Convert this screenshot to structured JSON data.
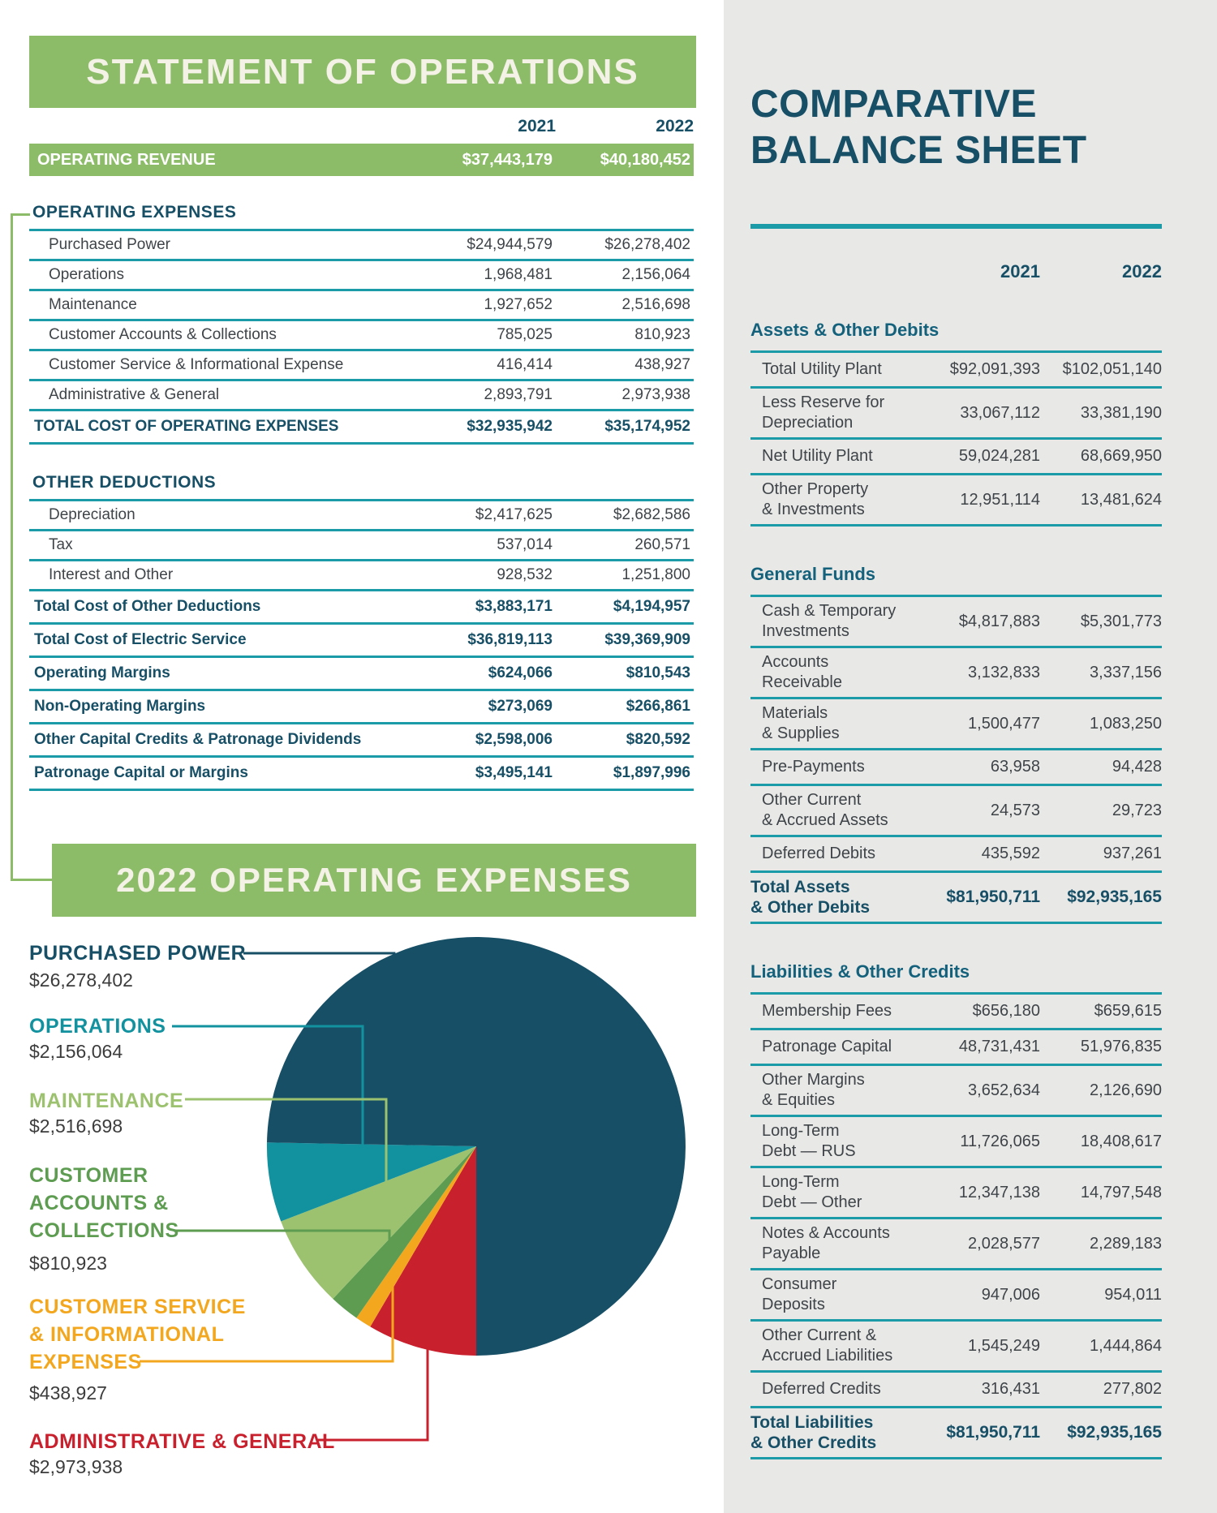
{
  "colors": {
    "banner_green": "#8CBC68",
    "navy": "#174F66",
    "teal": "#12919F",
    "rule_teal": "#1B9BA8",
    "light_green": "#9CC26F",
    "mid_green": "#5D9C51",
    "orange": "#F3A71F",
    "red": "#C9202E",
    "panel_gray": "#E8E8E7",
    "text_gray": "#3F4449",
    "banner_text": "#F4F1E6"
  },
  "statement": {
    "title": "STATEMENT OF OPERATIONS",
    "col_2021": "2021",
    "col_2022": "2022",
    "revenue": {
      "label": "OPERATING REVENUE",
      "y2021": "$37,443,179",
      "y2022": "$40,180,452"
    },
    "operating_expenses": {
      "heading": "OPERATING EXPENSES",
      "rows": [
        {
          "label": "Purchased Power",
          "y2021": "$24,944,579",
          "y2022": "$26,278,402"
        },
        {
          "label": "Operations",
          "y2021": "1,968,481",
          "y2022": "2,156,064"
        },
        {
          "label": "Maintenance",
          "y2021": "1,927,652",
          "y2022": "2,516,698"
        },
        {
          "label": "Customer Accounts & Collections",
          "y2021": "785,025",
          "y2022": "810,923"
        },
        {
          "label": "Customer Service & Informational Expense",
          "y2021": "416,414",
          "y2022": "438,927"
        },
        {
          "label": "Administrative & General",
          "y2021": "2,893,791",
          "y2022": "2,973,938"
        }
      ],
      "total": {
        "label": "TOTAL COST OF OPERATING EXPENSES",
        "y2021": "$32,935,942",
        "y2022": "$35,174,952"
      }
    },
    "other_deductions": {
      "heading": "OTHER DEDUCTIONS",
      "rows": [
        {
          "label": "Depreciation",
          "y2021": "$2,417,625",
          "y2022": "$2,682,586"
        },
        {
          "label": "Tax",
          "y2021": "537,014",
          "y2022": "260,571"
        },
        {
          "label": "Interest and Other",
          "y2021": "928,532",
          "y2022": "1,251,800"
        }
      ]
    },
    "summary_rows": [
      {
        "label": "Total Cost of Other Deductions",
        "y2021": "$3,883,171",
        "y2022": "$4,194,957"
      },
      {
        "label": "Total Cost of Electric Service",
        "y2021": "$36,819,113",
        "y2022": "$39,369,909"
      },
      {
        "label": "Operating Margins",
        "y2021": "$624,066",
        "y2022": "$810,543"
      },
      {
        "label": "Non-Operating Margins",
        "y2021": "$273,069",
        "y2022": "$266,861"
      },
      {
        "label": "Other Capital Credits & Patronage Dividends",
        "y2021": "$2,598,006",
        "y2022": "$820,592"
      },
      {
        "label": "Patronage Capital or Margins",
        "y2021": "$3,495,141",
        "y2022": "$1,897,996"
      }
    ]
  },
  "chart_data": {
    "type": "pie",
    "title": "2022 OPERATING EXPENSES",
    "categories": [
      "Purchased Power",
      "Operations",
      "Maintenance",
      "Customer Accounts & Collections",
      "Customer Service & Informational Expenses",
      "Administrative & General"
    ],
    "values": [
      26278402,
      2156064,
      2516698,
      810923,
      438927,
      2973938
    ],
    "value_labels": [
      "$26,278,402",
      "$2,156,064",
      "$2,516,698",
      "$810,923",
      "$438,927",
      "$2,973,938"
    ],
    "percents": [
      74.7,
      6.1,
      7.2,
      2.3,
      1.2,
      8.5
    ],
    "colors": [
      "#174F66",
      "#12919F",
      "#9CC26F",
      "#5D9C51",
      "#F3A71F",
      "#C9202E"
    ],
    "legend_lines": [
      [
        "PURCHASED POWER"
      ],
      [
        "OPERATIONS"
      ],
      [
        "MAINTENANCE"
      ],
      [
        "CUSTOMER",
        "ACCOUNTS &",
        "COLLECTIONS"
      ],
      [
        "CUSTOMER SERVICE",
        "& INFORMATIONAL",
        "EXPENSES"
      ],
      [
        "ADMINISTRATIVE & GENERAL"
      ]
    ],
    "layout_note": "slices fan clockwise ending at 6 o'clock; legend at left with color-coded callout lines"
  },
  "balance": {
    "title_line1": "COMPARATIVE",
    "title_line2": "BALANCE SHEET",
    "col_2021": "2021",
    "col_2022": "2022",
    "sections": [
      {
        "heading": "Assets & Other Debits",
        "rows": [
          {
            "label": "Total Utility Plant",
            "y2021": "$92,091,393",
            "y2022": "$102,051,140"
          },
          {
            "label": "Less Reserve for\nDepreciation",
            "y2021": "33,067,112",
            "y2022": "33,381,190"
          },
          {
            "label": "Net Utility Plant",
            "y2021": "59,024,281",
            "y2022": "68,669,950"
          },
          {
            "label": "Other Property\n& Investments",
            "y2021": "12,951,114",
            "y2022": "13,481,624"
          }
        ]
      },
      {
        "heading": "General Funds",
        "rows": [
          {
            "label": "Cash & Temporary\nInvestments",
            "y2021": "$4,817,883",
            "y2022": "$5,301,773"
          },
          {
            "label": "Accounts\nReceivable",
            "y2021": "3,132,833",
            "y2022": "3,337,156"
          },
          {
            "label": "Materials\n& Supplies",
            "y2021": "1,500,477",
            "y2022": "1,083,250"
          },
          {
            "label": "Pre-Payments",
            "y2021": "63,958",
            "y2022": "94,428"
          },
          {
            "label": "Other Current\n& Accrued Assets",
            "y2021": "24,573",
            "y2022": "29,723"
          },
          {
            "label": "Deferred Debits",
            "y2021": "435,592",
            "y2022": "937,261"
          },
          {
            "label": "Total Assets\n& Other Debits",
            "y2021": "$81,950,711",
            "y2022": "$92,935,165",
            "bold": true
          }
        ]
      },
      {
        "heading": "Liabilities & Other Credits",
        "rows": [
          {
            "label": "Membership Fees",
            "y2021": "$656,180",
            "y2022": "$659,615"
          },
          {
            "label": "Patronage Capital",
            "y2021": "48,731,431",
            "y2022": "51,976,835"
          },
          {
            "label": "Other Margins\n& Equities",
            "y2021": "3,652,634",
            "y2022": "2,126,690"
          },
          {
            "label": "Long-Term\nDebt — RUS",
            "y2021": "11,726,065",
            "y2022": "18,408,617"
          },
          {
            "label": "Long-Term\nDebt — Other",
            "y2021": "12,347,138",
            "y2022": "14,797,548"
          },
          {
            "label": "Notes & Accounts\nPayable",
            "y2021": "2,028,577",
            "y2022": "2,289,183"
          },
          {
            "label": "Consumer Deposits",
            "y2021": "947,006",
            "y2022": "954,011"
          },
          {
            "label": "Other Current &\nAccrued Liabilities",
            "y2021": "1,545,249",
            "y2022": "1,444,864"
          },
          {
            "label": "Deferred Credits",
            "y2021": "316,431",
            "y2022": "277,802"
          },
          {
            "label": "Total Liabilities\n& Other Credits",
            "y2021": "$81,950,711",
            "y2022": "$92,935,165",
            "bold": true
          }
        ]
      }
    ]
  }
}
